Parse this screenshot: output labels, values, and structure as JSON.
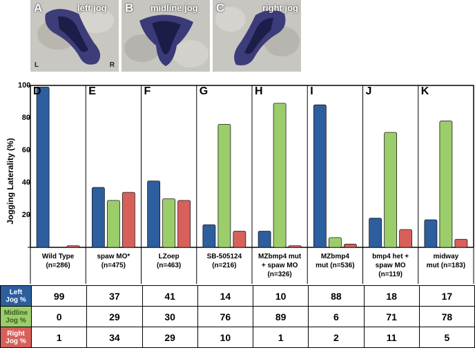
{
  "photos": [
    {
      "letter": "A",
      "caption": "left jog",
      "left_label": "L",
      "right_label": "R"
    },
    {
      "letter": "B",
      "caption": "midline jog"
    },
    {
      "letter": "C",
      "caption": "right jog"
    }
  ],
  "chart_data": {
    "type": "bar",
    "ylabel": "Jogging Laterality (%)",
    "ylim": [
      0,
      100
    ],
    "yticks": [
      "100",
      "80",
      "60",
      "40",
      "20"
    ],
    "series": [
      {
        "name": "Left Jog %",
        "color": "#2d5e9e",
        "values": [
          99,
          37,
          41,
          14,
          10,
          88,
          18,
          17
        ]
      },
      {
        "name": "Midline Jog %",
        "color": "#9ccd6b",
        "values": [
          0,
          29,
          30,
          76,
          89,
          6,
          71,
          78
        ]
      },
      {
        "name": "Right Jog %",
        "color": "#d8605b",
        "values": [
          1,
          34,
          29,
          10,
          1,
          2,
          11,
          5
        ]
      }
    ],
    "panels": [
      "D",
      "E",
      "F",
      "G",
      "H",
      "I",
      "J",
      "K"
    ],
    "categories": [
      [
        "Wild Type",
        "(n=286)"
      ],
      [
        "spaw MO*",
        "(n=475)"
      ],
      [
        "LZoep",
        "(n=463)"
      ],
      [
        "SB-505124",
        "(n=216)"
      ],
      [
        "MZbmp4 mut",
        "+ spaw MO",
        "(n=326)"
      ],
      [
        "MZbmp4",
        "mut (n=536)"
      ],
      [
        "bmp4 het +",
        "spaw MO",
        "(n=119)"
      ],
      [
        "midway",
        "mut (n=183)"
      ]
    ]
  },
  "table": {
    "row_labels": [
      [
        "Left",
        "Jog %"
      ],
      [
        "Midline",
        "Jog %"
      ],
      [
        "Right",
        "Jog %"
      ]
    ]
  }
}
